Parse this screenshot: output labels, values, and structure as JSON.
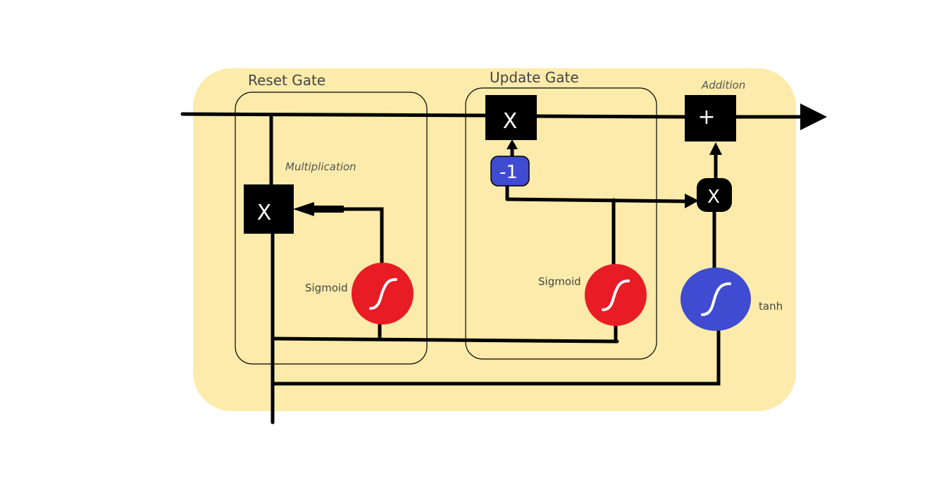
{
  "diagram": {
    "labels": {
      "reset_gate": "Reset Gate",
      "update_gate": "Update Gate",
      "addition": "Addition",
      "multiplication": "Multiplication",
      "sigmoid_reset": "Sigmoid",
      "sigmoid_update": "Sigmoid",
      "tanh": "tanh"
    },
    "operators": {
      "reset_multiply": "X",
      "update_multiply": "X",
      "addition": "+",
      "candidate_multiply": "X",
      "negate": "-1"
    },
    "colors": {
      "cell_background": "#fcebaa",
      "sigmoid": "#e81c24",
      "tanh": "#3f4bd0",
      "negate": "#3f4bd0",
      "operator": "#000000",
      "line": "#000000"
    },
    "icons": {
      "sigmoid": "s-curve-icon",
      "tanh": "s-curve-icon",
      "output": "arrow-right-icon"
    }
  }
}
